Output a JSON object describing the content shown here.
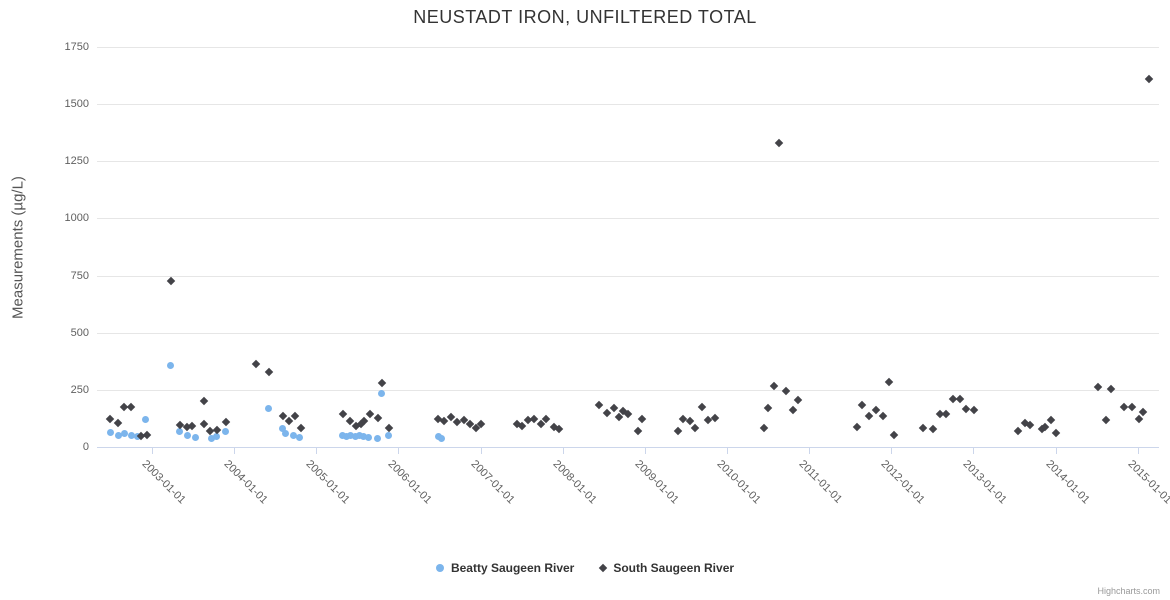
{
  "credits": "Highcharts.com",
  "chart_data": {
    "type": "scatter",
    "title": "NEUSTADT IRON, UNFILTERED TOTAL",
    "xlabel": "",
    "ylabel": "Measurements (µg/L)",
    "xlim": [
      2002.33,
      2015.26
    ],
    "ylim": [
      0,
      1750
    ],
    "yticks": [
      0,
      250,
      500,
      750,
      1000,
      1250,
      1500,
      1750
    ],
    "xticks": [
      2003,
      2004,
      2005,
      2006,
      2007,
      2008,
      2009,
      2010,
      2011,
      2012,
      2013,
      2014,
      2015
    ],
    "xtick_labels": [
      "2003-01-01",
      "2004-01-01",
      "2005-01-01",
      "2006-01-01",
      "2007-01-01",
      "2008-01-01",
      "2009-01-01",
      "2010-01-01",
      "2011-01-01",
      "2012-01-01",
      "2013-01-01",
      "2014-01-01",
      "2015-01-01"
    ],
    "grid": true,
    "legend_position": "bottom-center",
    "x_is_time": true,
    "x_unit": "decimal-year",
    "series": [
      {
        "name": "Beatty Saugeen River",
        "color": "#7cb5ec",
        "marker": "circle",
        "points": [
          [
            2002.5,
            63
          ],
          [
            2002.59,
            52
          ],
          [
            2002.67,
            57
          ],
          [
            2002.75,
            51
          ],
          [
            2002.82,
            45
          ],
          [
            2002.92,
            120
          ],
          [
            2003.23,
            355
          ],
          [
            2003.34,
            70
          ],
          [
            2003.43,
            49
          ],
          [
            2003.53,
            42
          ],
          [
            2003.72,
            39
          ],
          [
            2003.79,
            48
          ],
          [
            2003.9,
            66
          ],
          [
            2004.42,
            170
          ],
          [
            2004.59,
            80
          ],
          [
            2004.62,
            57
          ],
          [
            2004.72,
            52
          ],
          [
            2004.8,
            42
          ],
          [
            2005.32,
            51
          ],
          [
            2005.37,
            48
          ],
          [
            2005.42,
            51
          ],
          [
            2005.48,
            48
          ],
          [
            2005.53,
            51
          ],
          [
            2005.58,
            46
          ],
          [
            2005.64,
            42
          ],
          [
            2005.75,
            38
          ],
          [
            2005.79,
            235
          ],
          [
            2005.88,
            52
          ],
          [
            2006.49,
            45
          ],
          [
            2006.53,
            36
          ]
        ]
      },
      {
        "name": "South Saugeen River",
        "color": "#434348",
        "marker": "diamond",
        "points": [
          [
            2002.49,
            122
          ],
          [
            2002.59,
            106
          ],
          [
            2002.66,
            177
          ],
          [
            2002.74,
            175
          ],
          [
            2002.86,
            48
          ],
          [
            2002.94,
            52
          ],
          [
            2003.23,
            725
          ],
          [
            2003.34,
            96
          ],
          [
            2003.42,
            88
          ],
          [
            2003.49,
            93
          ],
          [
            2003.63,
            200
          ],
          [
            2003.63,
            100
          ],
          [
            2003.71,
            70
          ],
          [
            2003.79,
            76
          ],
          [
            2003.9,
            108
          ],
          [
            2004.26,
            365
          ],
          [
            2004.43,
            330
          ],
          [
            2004.6,
            137
          ],
          [
            2004.67,
            114
          ],
          [
            2004.74,
            135
          ],
          [
            2004.81,
            82
          ],
          [
            2005.33,
            144
          ],
          [
            2005.41,
            115
          ],
          [
            2005.48,
            93
          ],
          [
            2005.54,
            102
          ],
          [
            2005.58,
            115
          ],
          [
            2005.65,
            144
          ],
          [
            2005.75,
            126
          ],
          [
            2005.8,
            280
          ],
          [
            2005.88,
            82
          ],
          [
            2006.48,
            121
          ],
          [
            2006.56,
            115
          ],
          [
            2006.64,
            130
          ],
          [
            2006.71,
            108
          ],
          [
            2006.8,
            118
          ],
          [
            2006.87,
            99
          ],
          [
            2006.94,
            82
          ],
          [
            2007.01,
            99
          ],
          [
            2007.44,
            102
          ],
          [
            2007.5,
            93
          ],
          [
            2007.58,
            117
          ],
          [
            2007.65,
            124
          ],
          [
            2007.74,
            99
          ],
          [
            2007.8,
            122
          ],
          [
            2007.89,
            89
          ],
          [
            2007.96,
            79
          ],
          [
            2008.44,
            184
          ],
          [
            2008.54,
            150
          ],
          [
            2008.63,
            172
          ],
          [
            2008.69,
            133
          ],
          [
            2008.74,
            156
          ],
          [
            2008.8,
            146
          ],
          [
            2008.92,
            70
          ],
          [
            2008.96,
            121
          ],
          [
            2009.4,
            70
          ],
          [
            2009.47,
            121
          ],
          [
            2009.55,
            115
          ],
          [
            2009.61,
            84
          ],
          [
            2009.7,
            174
          ],
          [
            2009.77,
            118
          ],
          [
            2009.86,
            125
          ],
          [
            2010.45,
            84
          ],
          [
            2010.5,
            170
          ],
          [
            2010.57,
            265
          ],
          [
            2010.63,
            1330
          ],
          [
            2010.72,
            245
          ],
          [
            2010.8,
            163
          ],
          [
            2010.87,
            207
          ],
          [
            2011.58,
            89
          ],
          [
            2011.64,
            185
          ],
          [
            2011.73,
            136
          ],
          [
            2011.81,
            162
          ],
          [
            2011.9,
            137
          ],
          [
            2011.97,
            286
          ],
          [
            2012.03,
            52
          ],
          [
            2012.39,
            82
          ],
          [
            2012.51,
            77
          ],
          [
            2012.59,
            146
          ],
          [
            2012.67,
            146
          ],
          [
            2012.75,
            209
          ],
          [
            2012.84,
            210
          ],
          [
            2012.91,
            165
          ],
          [
            2013.01,
            161
          ],
          [
            2013.54,
            71
          ],
          [
            2013.63,
            105
          ],
          [
            2013.69,
            96
          ],
          [
            2013.83,
            79
          ],
          [
            2013.87,
            89
          ],
          [
            2013.94,
            118
          ],
          [
            2014.0,
            60
          ],
          [
            2014.52,
            261
          ],
          [
            2014.62,
            118
          ],
          [
            2014.68,
            252
          ],
          [
            2014.83,
            176
          ],
          [
            2014.93,
            176
          ],
          [
            2015.02,
            121
          ],
          [
            2015.07,
            154
          ],
          [
            2015.14,
            1610
          ]
        ]
      }
    ]
  }
}
